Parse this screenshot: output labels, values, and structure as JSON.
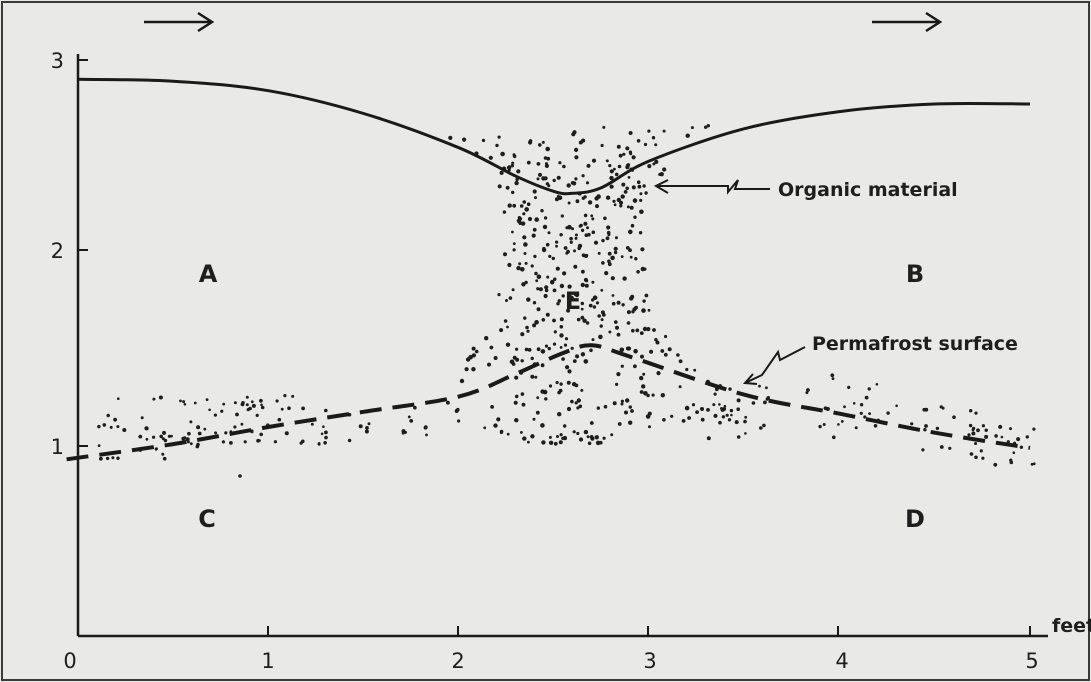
{
  "x_axis": {
    "ticks": [
      {
        "value": 0,
        "label": "0"
      },
      {
        "value": 1,
        "label": "1"
      },
      {
        "value": 2,
        "label": "2"
      },
      {
        "value": 3,
        "label": "3"
      },
      {
        "value": 4,
        "label": "4"
      },
      {
        "value": 5,
        "label": "5"
      }
    ],
    "unit_label": "feet"
  },
  "y_axis": {
    "ticks": [
      {
        "value": 1,
        "label": "1"
      },
      {
        "value": 2,
        "label": "2"
      },
      {
        "value": 3,
        "label": "3"
      }
    ]
  },
  "regions": {
    "a": "A",
    "b": "B",
    "c": "C",
    "d": "D",
    "e": "E"
  },
  "annotations": {
    "organic": "Organic material",
    "permafrost": "Permafrost surface"
  },
  "flow_arrows": [
    "arrow-right",
    "arrow-right"
  ],
  "chart_data": {
    "type": "line",
    "x_range": [
      0,
      5
    ],
    "y_range": [
      0,
      3
    ],
    "series": [
      {
        "style": "solid",
        "x": [
          0.0,
          0.5,
          1.0,
          1.5,
          2.0,
          2.3,
          2.5,
          2.6,
          2.75,
          3.0,
          3.5,
          4.0,
          4.5,
          5.0
        ],
        "y": [
          2.93,
          2.92,
          2.87,
          2.75,
          2.57,
          2.42,
          2.34,
          2.33,
          2.36,
          2.5,
          2.67,
          2.76,
          2.8,
          2.8
        ]
      },
      {
        "style": "dashed",
        "x": [
          -0.06,
          0.5,
          1.0,
          1.5,
          2.0,
          2.3,
          2.55,
          2.7,
          2.9,
          3.5,
          4.0,
          4.5,
          5.0
        ],
        "y": [
          0.93,
          1.01,
          1.1,
          1.18,
          1.26,
          1.38,
          1.49,
          1.53,
          1.47,
          1.27,
          1.17,
          1.07,
          0.99
        ]
      }
    ]
  }
}
